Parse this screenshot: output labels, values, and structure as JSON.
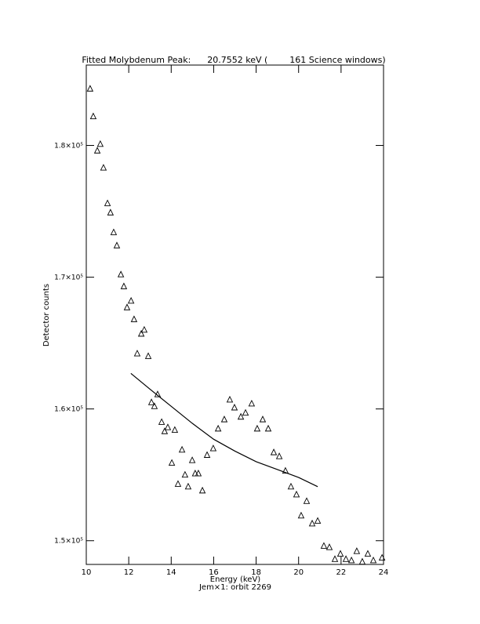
{
  "chart_data": {
    "type": "scatter",
    "title": "Fitted Molybdenum Peak:      20.7552 keV (        161 Science windows)",
    "x_label": "Energy (keV)",
    "subtitle": "Jem×1: orbit 2269",
    "y_label": "Detector counts",
    "xlim": [
      10,
      24
    ],
    "xticks": [
      10,
      12,
      14,
      16,
      18,
      20,
      22,
      24
    ],
    "ylim": [
      148200,
      186100
    ],
    "yticks": [
      {
        "value": 150000,
        "label": "1.5×10⁵"
      },
      {
        "value": 160000,
        "label": "1.6×10⁵"
      },
      {
        "value": 170000,
        "label": "1.7×10⁵"
      },
      {
        "value": 180000,
        "label": "1.8×10⁵"
      }
    ],
    "series": [
      {
        "name": "Data",
        "color": "#000000",
        "marker": "triangle",
        "x": [
          10.18,
          10.33,
          10.52,
          10.66,
          10.81,
          11.0,
          11.14,
          11.29,
          11.44,
          11.63,
          11.77,
          11.92,
          12.11,
          12.25,
          12.4,
          12.59,
          12.73,
          12.92,
          13.07,
          13.21,
          13.36,
          13.55,
          13.69,
          13.84,
          14.03,
          14.17,
          14.32,
          14.51,
          14.65,
          14.8,
          14.99,
          15.13,
          15.28,
          15.47,
          15.69,
          15.98,
          16.21,
          16.5,
          16.76,
          16.98,
          17.28,
          17.5,
          17.79,
          18.05,
          18.31,
          18.57,
          18.83,
          19.09,
          19.38,
          19.64,
          19.9,
          20.12,
          20.38,
          20.64,
          20.9,
          21.19,
          21.45,
          21.71,
          21.97,
          22.23,
          22.49,
          22.74,
          23.0,
          23.26,
          23.52,
          23.93
        ],
        "values": [
          184300,
          182200,
          179600,
          180100,
          178300,
          175600,
          174900,
          173400,
          172400,
          170200,
          169300,
          167700,
          168200,
          166800,
          164200,
          165700,
          166000,
          164000,
          160500,
          160200,
          161100,
          159000,
          158300,
          158600,
          155900,
          158400,
          154300,
          156900,
          155000,
          154100,
          156100,
          155100,
          155100,
          153800,
          156500,
          157000,
          158500,
          159200,
          160700,
          160100,
          159400,
          159700,
          160400,
          158500,
          159200,
          158500,
          156700,
          156400,
          155300,
          154100,
          153500,
          151900,
          153000,
          151300,
          151500,
          149600,
          149500,
          148600,
          149000,
          148600,
          148500,
          149200,
          148400,
          149000,
          148500,
          148700
        ]
      },
      {
        "name": "Fit",
        "color": "#000000",
        "marker": "line",
        "x": [
          12.1,
          13,
          14,
          15,
          16,
          17,
          18,
          19,
          20,
          20.9
        ],
        "values": [
          162700,
          161500,
          160200,
          158900,
          157700,
          156800,
          156000,
          155400,
          154800,
          154100
        ]
      }
    ]
  }
}
